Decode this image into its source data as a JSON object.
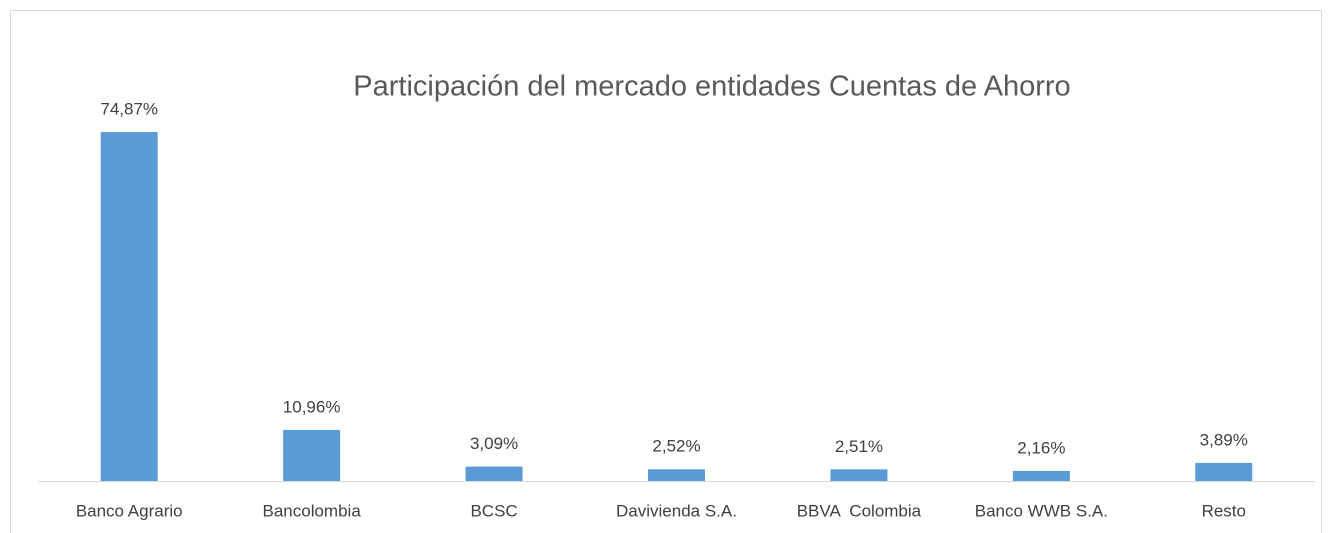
{
  "chart_data": {
    "type": "bar",
    "title": "Participación del mercado entidades Cuentas de Ahorro",
    "categories": [
      "Banco Agrario",
      "Bancolombia",
      "BCSC",
      "Davivienda S.A.",
      "BBVA  Colombia",
      "Banco WWB S.A.",
      "Resto"
    ],
    "values": [
      74.87,
      10.96,
      3.09,
      2.52,
      2.51,
      2.16,
      3.89
    ],
    "value_labels": [
      "74,87%",
      "10,96%",
      "3,09%",
      "2,52%",
      "2,51%",
      "2,16%",
      "3,89%"
    ],
    "color": "#5b9bd5"
  }
}
